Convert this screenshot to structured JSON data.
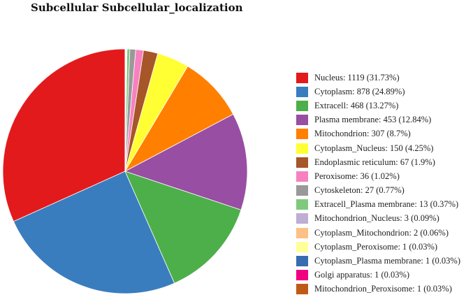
{
  "chart_data": {
    "type": "pie",
    "title": "Subcellular Subcellular_localization",
    "legend_position": "right",
    "slices": [
      {
        "label": "Nucleus: 1119 (31.73%)",
        "value": 1119,
        "color": "#e31a1c"
      },
      {
        "label": "Cytoplasm: 878 (24.89%)",
        "value": 878,
        "color": "#3a7dbf"
      },
      {
        "label": "Extracell: 468 (13.27%)",
        "value": 468,
        "color": "#4daf4a"
      },
      {
        "label": "Plasma membrane: 453 (12.84%)",
        "value": 453,
        "color": "#984ea3"
      },
      {
        "label": "Mitochondrion: 307 (8.7%)",
        "value": 307,
        "color": "#ff7f00"
      },
      {
        "label": "Cytoplasm_Nucleus: 150 (4.25%)",
        "value": 150,
        "color": "#ffff33"
      },
      {
        "label": "Endoplasmic reticulum: 67 (1.9%)",
        "value": 67,
        "color": "#a65628"
      },
      {
        "label": "Peroxisome: 36 (1.02%)",
        "value": 36,
        "color": "#f781bf"
      },
      {
        "label": "Cytoskeleton: 27 (0.77%)",
        "value": 27,
        "color": "#999999"
      },
      {
        "label": "Extracell_Plasma membrane: 13 (0.37%)",
        "value": 13,
        "color": "#7fc97f"
      },
      {
        "label": "Mitochondrion_Nucleus: 3 (0.09%)",
        "value": 3,
        "color": "#beaed4"
      },
      {
        "label": "Cytoplasm_Mitochondrion: 2 (0.06%)",
        "value": 2,
        "color": "#fdc086"
      },
      {
        "label": "Cytoplasm_Peroxisome: 1 (0.03%)",
        "value": 1,
        "color": "#ffff99"
      },
      {
        "label": "Cytoplasm_Plasma membrane: 1 (0.03%)",
        "value": 1,
        "color": "#386cb0"
      },
      {
        "label": "Golgi apparatus: 1 (0.03%)",
        "value": 1,
        "color": "#f0027f"
      },
      {
        "label": "Mitochondrion_Peroxisome: 1 (0.03%)",
        "value": 1,
        "color": "#bf5b17"
      }
    ]
  }
}
